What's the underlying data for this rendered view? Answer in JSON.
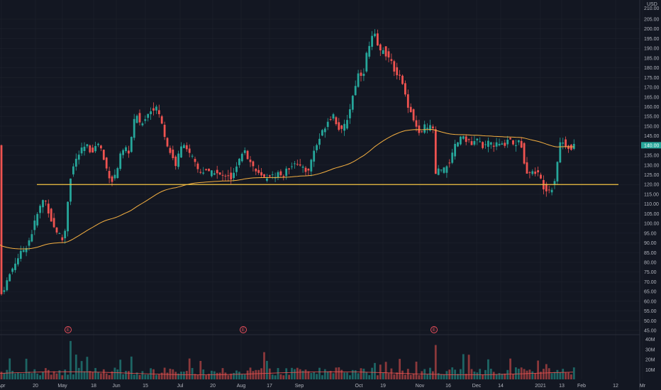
{
  "chart_data": {
    "type": "candlestick",
    "currency": "USD",
    "price_axis": {
      "top_label": "210.00",
      "ticks": [
        "205.00",
        "200.00",
        "195.00",
        "190.00",
        "185.00",
        "180.00",
        "175.00",
        "170.00",
        "165.00",
        "160.00",
        "155.00",
        "150.00",
        "145.00",
        "140.00",
        "135.00",
        "130.00",
        "125.00",
        "120.00",
        "115.00",
        "110.00",
        "105.00",
        "100.00",
        "95.00",
        "90.00",
        "85.00",
        "80.00",
        "75.00",
        "70.00",
        "65.00",
        "60.00",
        "55.00",
        "50.00",
        "45.00"
      ],
      "range": [
        45,
        210
      ]
    },
    "volume_axis": {
      "ticks": [
        "40M",
        "30M",
        "20M",
        "10M"
      ],
      "range": [
        0,
        40
      ]
    },
    "time_axis": [
      "Apr",
      "20",
      "May",
      "18",
      "Jun",
      "15",
      "Jul",
      "20",
      "Aug",
      "17",
      "Sep",
      "Oct",
      "19",
      "Nov",
      "16",
      "Dec",
      "14",
      "2021",
      "13",
      "Feb",
      "12",
      "Mr"
    ],
    "last_price": 140.0,
    "horizontal_line": 120.0,
    "earnings_markers": [
      "E",
      "E",
      "E"
    ],
    "colors": {
      "background": "#131722",
      "up": "#26a69a",
      "down": "#ef5350",
      "moving_average": "#f5b041",
      "horizontal_line": "#f5c542",
      "grid": "#1e222d",
      "text": "#b2b5be",
      "earnings": "#f7525f"
    }
  }
}
